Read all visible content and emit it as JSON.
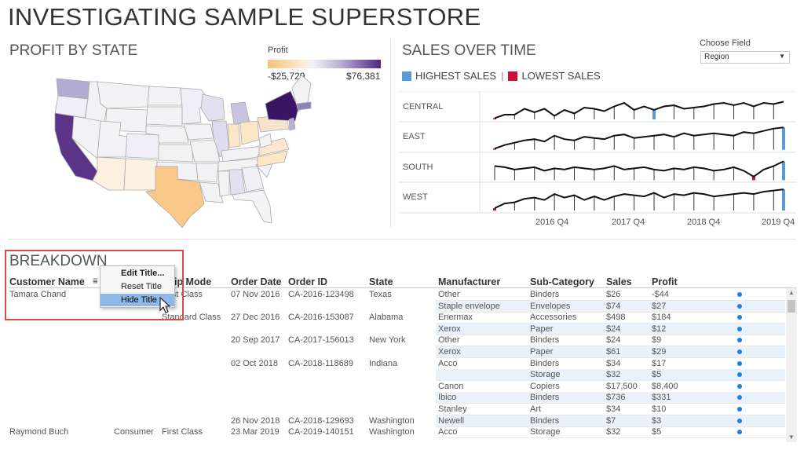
{
  "title": "INVESTIGATING SAMPLE SUPERSTORE",
  "map_section": {
    "title": "PROFIT BY STATE",
    "legend_title": "Profit",
    "legend_min": "-$25,729",
    "legend_max": "$76,381"
  },
  "sales_section": {
    "title": "SALES OVER TIME",
    "choose_field_label": "Choose Field",
    "dropdown_value": "Region",
    "highest_label": "HIGHEST SALES",
    "lowest_label": "LOWEST SALES",
    "highest_color": "#5b9bd5",
    "lowest_color": "#d0103a",
    "regions": [
      "CENTRAL",
      "EAST",
      "SOUTH",
      "WEST"
    ],
    "year_ticks": [
      "2016 Q4",
      "2017 Q4",
      "2018 Q4",
      "2019 Q4"
    ]
  },
  "breakdown": {
    "title": "BREAKDOWN",
    "columns": [
      "Customer Name",
      "Ship Mode",
      "Order Date",
      "Order ID",
      "State",
      "Manufacturer",
      "Sub-Category",
      "Sales",
      "Profit"
    ],
    "rows": [
      {
        "customer": "Tamara Chand",
        "segment": "",
        "ship": "First Class",
        "date": "07 Nov 2016",
        "order": "CA-2016-123498",
        "state": "Texas",
        "mfr": "Other",
        "sub": "Binders",
        "sales": "$26",
        "profit": "-$44",
        "shade": false
      },
      {
        "customer": "",
        "segment": "",
        "ship": "",
        "date": "",
        "order": "",
        "state": "",
        "mfr": "Staple envelope",
        "sub": "Envelopes",
        "sales": "$74",
        "profit": "$27",
        "shade": true
      },
      {
        "customer": "",
        "segment": "",
        "ship": "Standard Class",
        "date": "27 Dec 2016",
        "order": "CA-2016-153087",
        "state": "Alabama",
        "mfr": "Enermax",
        "sub": "Accessories",
        "sales": "$498",
        "profit": "$184",
        "shade": false
      },
      {
        "customer": "",
        "segment": "",
        "ship": "",
        "date": "",
        "order": "",
        "state": "",
        "mfr": "Xerox",
        "sub": "Paper",
        "sales": "$24",
        "profit": "$12",
        "shade": true
      },
      {
        "customer": "",
        "segment": "",
        "ship": "",
        "date": "20 Sep 2017",
        "order": "CA-2017-156013",
        "state": "New York",
        "mfr": "Other",
        "sub": "Binders",
        "sales": "$24",
        "profit": "$9",
        "shade": false
      },
      {
        "customer": "",
        "segment": "",
        "ship": "",
        "date": "",
        "order": "",
        "state": "",
        "mfr": "Xerox",
        "sub": "Paper",
        "sales": "$61",
        "profit": "$29",
        "shade": true
      },
      {
        "customer": "",
        "segment": "",
        "ship": "",
        "date": "02 Oct 2018",
        "order": "CA-2018-118689",
        "state": "Indiana",
        "mfr": "Acco",
        "sub": "Binders",
        "sales": "$34",
        "profit": "$17",
        "shade": false
      },
      {
        "customer": "",
        "segment": "",
        "ship": "",
        "date": "",
        "order": "",
        "state": "",
        "mfr": "",
        "sub": "Storage",
        "sales": "$32",
        "profit": "$5",
        "shade": true
      },
      {
        "customer": "",
        "segment": "",
        "ship": "",
        "date": "",
        "order": "",
        "state": "",
        "mfr": "Canon",
        "sub": "Copiers",
        "sales": "$17,500",
        "profit": "$8,400",
        "shade": false
      },
      {
        "customer": "",
        "segment": "",
        "ship": "",
        "date": "",
        "order": "",
        "state": "",
        "mfr": "Ibico",
        "sub": "Binders",
        "sales": "$736",
        "profit": "$331",
        "shade": true
      },
      {
        "customer": "",
        "segment": "",
        "ship": "",
        "date": "",
        "order": "",
        "state": "",
        "mfr": "Stanley",
        "sub": "Art",
        "sales": "$34",
        "profit": "$10",
        "shade": false
      },
      {
        "customer": "",
        "segment": "",
        "ship": "",
        "date": "26 Nov 2018",
        "order": "CA-2018-129693",
        "state": "Washington",
        "mfr": "Newell",
        "sub": "Binders",
        "sales": "$7",
        "profit": "$3",
        "shade": true
      },
      {
        "customer": "Raymond Buch",
        "segment": "Consumer",
        "ship": "First Class",
        "date": "23 Mar 2019",
        "order": "CA-2019-140151",
        "state": "Washington",
        "mfr": "Acco",
        "sub": "Storage",
        "sales": "$32",
        "profit": "$5",
        "shade": false
      }
    ]
  },
  "context_menu": {
    "items": [
      "Edit Title...",
      "Reset Title",
      "Hide Title"
    ]
  }
}
